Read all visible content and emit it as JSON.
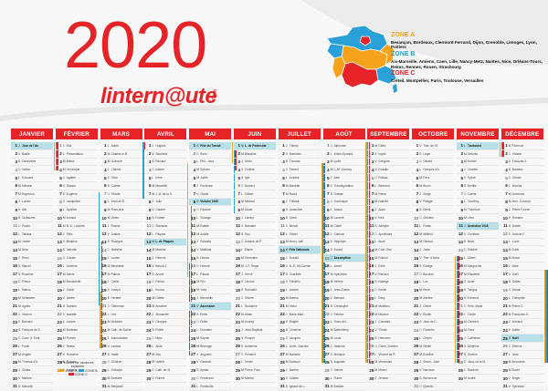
{
  "year": "2020",
  "brand": {
    "name_main": "lintern",
    "name_at": "@",
    "name_end": "ute",
    "suffix": ".com"
  },
  "zones": [
    {
      "title": "ZONE A",
      "cities": "Besançon, Bordeaux, Clermont-Ferrand, Dijon, Grenoble, Limoges, Lyon, Poitiers"
    },
    {
      "title": "ZONE B",
      "cities": "Aix-Marseille, Amiens, Caen, Lille, Nancy-Metz, Nantes, Nice, Orléans-Tours, Reims, Rennes, Rouen, Strasbourg"
    },
    {
      "title": "ZONE C",
      "cities": "Créteil, Montpellier, Paris, Toulouse, Versailles"
    }
  ],
  "colors": {
    "red": "#e62428",
    "zone_a": "#f6a31b",
    "zone_b": "#2aa0d8",
    "zone_c": "#e62428",
    "holiday": "#b8e0e8"
  },
  "legend": {
    "text": "Périodes de vacances scolaires",
    "labels": [
      "ZONE A",
      "ZONE B",
      "ZONE C"
    ]
  },
  "months": [
    {
      "name": "JANVIER",
      "start": 3,
      "days": 31,
      "holidays": {
        "1": "Jour de l'An"
      }
    },
    {
      "name": "FÉVRIER",
      "start": 6,
      "days": 29,
      "holidays": {}
    },
    {
      "name": "MARS",
      "start": 0,
      "days": 31,
      "holidays": {}
    },
    {
      "name": "AVRIL",
      "start": 3,
      "days": 30,
      "holidays": {
        "13": "L. de Pâques"
      }
    },
    {
      "name": "MAI",
      "start": 5,
      "days": 31,
      "holidays": {
        "1": "Fête du Travail",
        "8": "Victoire 1945",
        "21": "Ascension"
      }
    },
    {
      "name": "JUIN",
      "start": 1,
      "days": 30,
      "holidays": {
        "1": "L. de Pentecôte"
      }
    },
    {
      "name": "JUILLET",
      "start": 3,
      "days": 31,
      "holidays": {
        "14": "Fête Nationale"
      }
    },
    {
      "name": "AOÛT",
      "start": 6,
      "days": 31,
      "holidays": {
        "15": "Assomption"
      }
    },
    {
      "name": "SEPTEMBRE",
      "start": 2,
      "days": 30,
      "holidays": {}
    },
    {
      "name": "OCTOBRE",
      "start": 4,
      "days": 31,
      "holidays": {}
    },
    {
      "name": "NOVEMBRE",
      "start": 0,
      "days": 30,
      "holidays": {
        "1": "Toussaint",
        "11": "Armistice 1918"
      }
    },
    {
      "name": "DÉCEMBRE",
      "start": 2,
      "days": 31,
      "holidays": {
        "25": "Noël"
      }
    }
  ],
  "saints": {
    "JANVIER": [
      "Jour de l'An",
      "Basile",
      "Geneviève",
      "Odilon",
      "Edouard",
      "Mélaine",
      "Raymond",
      "Lucien",
      "Alix",
      "Guillaume",
      "Paulin",
      "Tatiana",
      "Yvette",
      "Nina",
      "Rémi",
      "Marcel",
      "Roseline",
      "Prisca",
      "Marius",
      "Sébastien",
      "Agnès",
      "Vincent",
      "Barnard",
      "François de S.",
      "Conv. S. Paul",
      "Paule",
      "Angèle",
      "Thomas d'A.",
      "Gildas",
      "Martine",
      "Marcelle"
    ],
    "FÉVRIER": [
      "Ella",
      "Présentation",
      "Blaise",
      "Véronique",
      "Agathe",
      "Gaston",
      "Eugénie",
      "Jacqueline",
      "Apolline",
      "Arnaud",
      "N.-D. Lourdes",
      "Félix",
      "Béatrice",
      "Valentin",
      "Claude",
      "Julienne",
      "Alexis",
      "Bernadette",
      "Gabin",
      "Aimée",
      "Damien",
      "Isabelle",
      "Lazare",
      "Modeste",
      "Roméo",
      "Nestor",
      "Honorine",
      "Romain",
      "Auguste"
    ],
    "MARS": [
      "Aubin",
      "Charles le B.",
      "Guénolé",
      "Casimir",
      "Olive",
      "Colette",
      "Félicité",
      "Jean de D.",
      "Françoise",
      "Vivien",
      "Rosine",
      "Justine",
      "Rodrigue",
      "Mathilde",
      "Louise",
      "Bénédicte",
      "Patrice",
      "Cyrille",
      "Joseph",
      "Herbert",
      "Clémence",
      "Léa",
      "Victorien",
      "Cath. de Suède",
      "Annonciation",
      "Larissa",
      "Habib",
      "Gontran",
      "Gwladys",
      "Amédée",
      "Benjamin"
    ],
    "AVRIL": [
      "Hugues",
      "Sandrine",
      "Richard",
      "Isidore",
      "Irène",
      "Marcellin",
      "J.-B. de la S.",
      "Julie",
      "Gautier",
      "Fulbert",
      "Stanislas",
      "Pâques",
      "L. de Pâques",
      "Maxime",
      "Paterne",
      "Benoît-J.",
      "Anicet",
      "Parfait",
      "Emma",
      "Odette",
      "Anselme",
      "Alexandre",
      "Georges",
      "Fidèle",
      "Marc",
      "Alida",
      "Zita",
      "Valérie",
      "Cath. de Si.",
      "Robert"
    ],
    "MAI": [
      "Fête du Travail",
      "Boris",
      "Phil., Jacq.",
      "Sylvain",
      "Judith",
      "Prudence",
      "Gisèle",
      "Victoire 1945",
      "Pacôme",
      "Solange",
      "Estelle",
      "Achille",
      "Rolande",
      "Matthias",
      "Denise",
      "Honoré",
      "Pascal",
      "Eric",
      "Yves",
      "Bernardin",
      "Ascension",
      "Emile",
      "Didier",
      "Donatien",
      "Sophie",
      "Bérenger",
      "Augustin",
      "Germain",
      "Aymar",
      "Ferdinand",
      "Pentecôte"
    ],
    "JUIN": [
      "L. de Pentecôte",
      "Blandine",
      "Kévin",
      "Clotilde",
      "Igor",
      "Norbert",
      "Gilbert",
      "Médard",
      "Diane",
      "Landry",
      "Barnabé",
      "Guy",
      "Antoine de P.",
      "Elisée",
      "Germaine",
      "J.-F. Régis",
      "Hervé",
      "Léonce",
      "Romuald",
      "Silvère",
      "Rodolphe",
      "Alban",
      "Audrey",
      "Jean-Baptiste",
      "Prosper",
      "Anthelme",
      "Fernand",
      "Irénée",
      "Pierre, Paul",
      "Martial"
    ],
    "JUILLET": [
      "Thierry",
      "Martinien",
      "Thomas",
      "Florent",
      "Antoine",
      "Mariette",
      "Raoul",
      "Thibaut",
      "Amandine",
      "Ulrich",
      "Benoît",
      "Olivier",
      "Henri, Joël",
      "Fête Nationale",
      "Donald",
      "N.-D. Mt-Carmel",
      "Charlotte",
      "Frédéric",
      "Arsène",
      "Marina",
      "Victor",
      "Marie-Mad.",
      "Brigitte",
      "Christine",
      "Jacques",
      "Anne, Joachim",
      "Nathalie",
      "Samson",
      "Marthe",
      "Juliette",
      "Ignace de L."
    ],
    "AOÛT": [
      "Alphonse",
      "Julien-Eymard",
      "Lydie",
      "J.-M. Vianney",
      "Abel",
      "Transfiguration",
      "Gaétan",
      "Dominique",
      "Amour",
      "Laurent",
      "Claire",
      "Clarisse",
      "Hippolyte",
      "Evrard",
      "Assomption",
      "Armel",
      "Hyacinthe",
      "Hélène",
      "Jean-Eudes",
      "Bernard",
      "Christophe",
      "Fabrice",
      "Rose de L.",
      "Barthélemy",
      "Louis",
      "Natacha",
      "Monique",
      "Augustin",
      "Sabine",
      "Fiacre",
      "Aristide"
    ],
    "SEPTEMBRE": [
      "Gilles",
      "Ingrid",
      "Grégoire",
      "Rosalie",
      "Raïssa",
      "Bertrand",
      "Reine",
      "Nativité",
      "Alain",
      "Inès",
      "Adelphe",
      "Apollinaire",
      "Aimé",
      "Croix Glor.",
      "Roland",
      "Edith",
      "Renaud",
      "Nadège",
      "Emilie",
      "Davy",
      "Matthieu",
      "Maurice",
      "Constant",
      "Thècle",
      "Hermann",
      "Côme, Damien",
      "Vincent de P.",
      "Venceslas",
      "Michel",
      "Jérôme"
    ],
    "OCTOBRE": [
      "Thér. de l'E.",
      "Léger",
      "Gérard",
      "François d'A.",
      "Fleur",
      "Bruno",
      "Serge",
      "Pélagie",
      "Denis",
      "Ghislain",
      "Firmin",
      "Wilfried",
      "Géraud",
      "Juste",
      "Thér. d'Avila",
      "Edwige",
      "Baudoin",
      "Luc",
      "René",
      "Adeline",
      "Céline",
      "Elodie",
      "Jean de C.",
      "Florentin",
      "Crépin",
      "Dimitri",
      "Emeline",
      "Simon, Jude",
      "Narcisse",
      "Bienvenue",
      "Quentin"
    ],
    "NOVEMBRE": [
      "Toussaint",
      "Défunts",
      "Hubert",
      "Charles",
      "Sylvie",
      "Bertille",
      "Carine",
      "Geoffroy",
      "Théodore",
      "Léon",
      "Armistice 1918",
      "Christian",
      "Brice",
      "Sidoine",
      "Albert",
      "Marguerite",
      "Elisabeth",
      "Aude",
      "Tanguy",
      "Edmond",
      "Prés. Marie",
      "Cécile",
      "Clément",
      "Flora",
      "Catherine",
      "Delphine",
      "Sévrine",
      "Jacq. de la M.",
      "Saturnin",
      "André"
    ],
    "DÉCEMBRE": [
      "Florence",
      "Viviane",
      "François-X.",
      "Barbara",
      "Gérald",
      "Nicolas",
      "Ambroise",
      "Imm. Concept.",
      "Pierre Fourier",
      "Romaric",
      "Daniel",
      "Jeanne-F.",
      "Lucie",
      "Odile",
      "Ninon",
      "Alice",
      "Gaël",
      "Gatien",
      "Urbain",
      "Théophile",
      "Pierre C.",
      "Françoise-X.",
      "Armand",
      "Adèle",
      "Noël",
      "Etienne",
      "Jean",
      "Innocents",
      "David",
      "Roger",
      "Sylvestre"
    ]
  },
  "weekday_letters": [
    "L",
    "M",
    "M",
    "J",
    "V",
    "S",
    "D"
  ]
}
